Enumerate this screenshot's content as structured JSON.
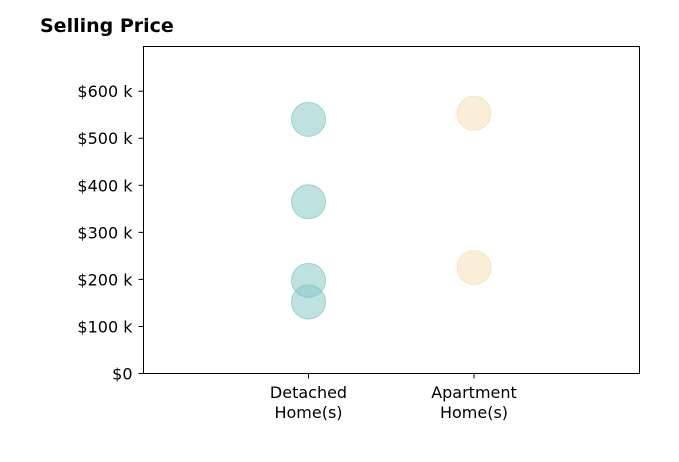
{
  "chart_data": {
    "type": "scatter",
    "title": "Selling Price",
    "xlabel": "",
    "ylabel": "",
    "categories": [
      [
        "Detached",
        "Home(s)"
      ],
      [
        "Apartment",
        "Home(s)"
      ]
    ],
    "yticks": [
      0,
      100,
      200,
      300,
      400,
      500,
      600
    ],
    "ytick_labels": [
      "$0",
      "$100 k",
      "$200 k",
      "$300 k",
      "$400 k",
      "$500 k",
      "$600 k"
    ],
    "ylim": [
      0,
      695
    ],
    "grid": false,
    "series": [
      {
        "color": "#7fc6c2",
        "values": [
          540,
          365,
          198,
          152
        ]
      },
      {
        "color": "#f3deb0",
        "values": [
          553,
          225
        ]
      }
    ]
  }
}
